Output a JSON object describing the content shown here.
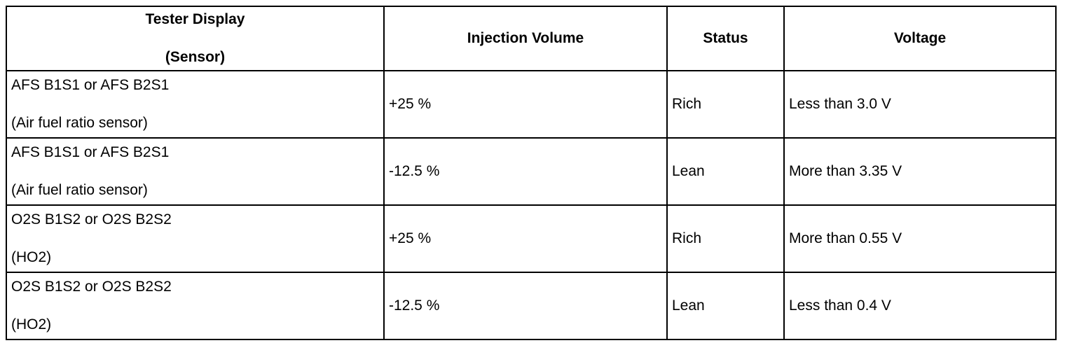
{
  "table": {
    "header": [
      [
        "Tester Display",
        "(Sensor)"
      ],
      [
        "Injection Volume"
      ],
      [
        "Status"
      ],
      [
        "Voltage"
      ]
    ],
    "rows": [
      [
        [
          "AFS B1S1 or AFS B2S1",
          "(Air fuel ratio sensor)"
        ],
        [
          "+25 %"
        ],
        [
          "Rich"
        ],
        [
          "Less than 3.0 V"
        ]
      ],
      [
        [
          "AFS B1S1 or AFS B2S1",
          "(Air fuel ratio sensor)"
        ],
        [
          "-12.5 %"
        ],
        [
          "Lean"
        ],
        [
          "More than 3.35 V"
        ]
      ],
      [
        [
          "O2S B1S2 or O2S B2S2",
          "(HO2)"
        ],
        [
          "+25 %"
        ],
        [
          "Rich"
        ],
        [
          "More than 0.55 V"
        ]
      ],
      [
        [
          "O2S B1S2 or O2S B2S2",
          "(HO2)"
        ],
        [
          "-12.5 %"
        ],
        [
          "Lean"
        ],
        [
          "Less than 0.4 V"
        ]
      ]
    ]
  }
}
